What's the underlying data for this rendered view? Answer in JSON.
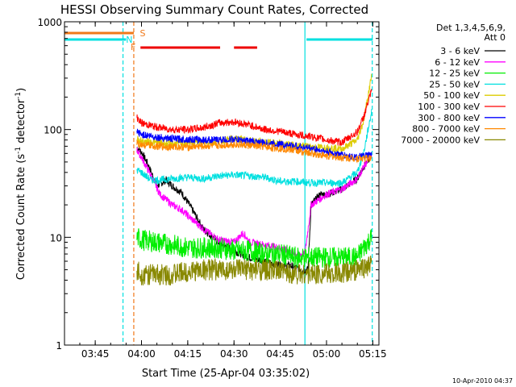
{
  "chart_data": {
    "type": "line",
    "title": "HESSI Observing Summary Count Rates, Corrected",
    "xlabel": "Start Time (25-Apr-04 03:35:02)",
    "ylabel_main": "Corrected Count Rate (s",
    "ylabel_sup1": "-1",
    "ylabel_mid": " detector",
    "ylabel_sup2": "-1",
    "ylabel_end": ")",
    "yscale": "log",
    "ylim": [
      1,
      1000
    ],
    "xlim": [
      "03:35:02",
      "05:17:00"
    ],
    "x_ticks": [
      "03:45",
      "04:00",
      "04:15",
      "04:30",
      "04:45",
      "05:00",
      "05:15"
    ],
    "y_ticks": [
      "1",
      "10",
      "100",
      "1000"
    ],
    "legend_header": [
      "Det 1,3,4,5,6,9,",
      "Att 0"
    ],
    "legend_position": "right",
    "flag_labels": {
      "saa": "S",
      "night": "N",
      "flare": "F"
    },
    "saa_interval": [
      "03:35:02",
      "03:57:30"
    ],
    "night_intervals": [
      [
        "03:35:02",
        "03:55:00"
      ],
      [
        "04:53:30",
        "05:15:00"
      ]
    ],
    "flare_intervals": [
      [
        "03:59:40",
        "04:25:30"
      ],
      [
        "04:30:00",
        "04:37:30"
      ]
    ],
    "vlines": [
      {
        "time": "03:54:00",
        "color": "#00e0e0",
        "style": "dashed"
      },
      {
        "time": "03:57:30",
        "color": "#f07818",
        "style": "dashed"
      },
      {
        "time": "04:53:00",
        "color": "#00e0e0",
        "style": "solid"
      },
      {
        "time": "05:14:50",
        "color": "#00e0e0",
        "style": "dashed"
      }
    ],
    "data_start": "03:58:30",
    "data_end": "05:14:40",
    "series": [
      {
        "name": "3 - 6 keV",
        "color": "#000000",
        "x": [
          "03:58:30",
          "04:00",
          "04:02",
          "04:05",
          "04:08",
          "04:10",
          "04:13",
          "04:16",
          "04:20",
          "04:25",
          "04:30",
          "04:35",
          "04:40",
          "04:45",
          "04:48",
          "04:52",
          "04:54",
          "04:55",
          "04:58",
          "05:00",
          "05:05",
          "05:10",
          "05:12",
          "05:14:40"
        ],
        "values": [
          68,
          62,
          48,
          30,
          34,
          30,
          26,
          19,
          12,
          9,
          7.5,
          6.5,
          6,
          5.5,
          5.5,
          5,
          5,
          20,
          25,
          25,
          28,
          35,
          45,
          58
        ]
      },
      {
        "name": "6 - 12 keV",
        "color": "#ff00ff",
        "x": [
          "03:58:30",
          "04:00",
          "04:03",
          "04:06",
          "04:10",
          "04:13",
          "04:16",
          "04:20",
          "04:25",
          "04:30",
          "04:33",
          "04:35",
          "04:40",
          "04:45",
          "04:50",
          "04:53",
          "04:55",
          "05:00",
          "05:05",
          "05:10",
          "05:12",
          "05:14:40"
        ],
        "values": [
          65,
          55,
          38,
          25,
          20,
          18,
          15,
          12,
          9.5,
          9,
          11,
          9,
          8.5,
          8,
          7,
          7,
          20,
          25,
          28,
          35,
          45,
          58
        ]
      },
      {
        "name": "12 - 25 keV",
        "color": "#00ee00",
        "x": [
          "03:58:30",
          "04:00",
          "04:05",
          "04:10",
          "04:15",
          "04:20",
          "04:25",
          "04:30",
          "04:35",
          "04:40",
          "04:45",
          "04:50",
          "04:55",
          "05:00",
          "05:05",
          "05:10",
          "05:12",
          "05:14:40"
        ],
        "values": [
          10,
          9.5,
          9,
          8.5,
          8,
          8,
          8,
          7.5,
          7.5,
          7,
          7,
          6.5,
          6.5,
          6.5,
          6.5,
          6.5,
          8,
          10
        ]
      },
      {
        "name": "25 - 50 keV",
        "color": "#00e0e0",
        "x": [
          "03:58:30",
          "04:00",
          "04:03",
          "04:06",
          "04:10",
          "04:15",
          "04:20",
          "04:25",
          "04:30",
          "04:35",
          "04:40",
          "04:45",
          "04:50",
          "04:55",
          "05:00",
          "05:05",
          "05:10",
          "05:12",
          "05:14:40"
        ],
        "values": [
          42,
          40,
          34,
          34,
          35,
          36,
          35,
          37,
          38,
          37,
          36,
          33,
          33,
          32,
          32,
          32,
          40,
          60,
          150
        ]
      },
      {
        "name": "50 - 100 keV",
        "color": "#ddcc00",
        "x": [
          "03:58:30",
          "04:00",
          "04:05",
          "04:10",
          "04:15",
          "04:20",
          "04:25",
          "04:30",
          "04:35",
          "04:40",
          "04:45",
          "04:50",
          "04:55",
          "05:00",
          "05:05",
          "05:10",
          "05:12",
          "05:14:40"
        ],
        "values": [
          82,
          78,
          75,
          74,
          75,
          76,
          78,
          82,
          79,
          76,
          74,
          71,
          69,
          68,
          66,
          80,
          120,
          320
        ]
      },
      {
        "name": "100 - 300 keV",
        "color": "#ff0000",
        "x": [
          "03:58:30",
          "04:00",
          "04:05",
          "04:10",
          "04:15",
          "04:20",
          "04:25",
          "04:30",
          "04:35",
          "04:40",
          "04:45",
          "04:50",
          "04:55",
          "05:00",
          "05:05",
          "05:10",
          "05:12",
          "05:14:40"
        ],
        "values": [
          130,
          115,
          105,
          100,
          100,
          104,
          115,
          118,
          110,
          100,
          96,
          90,
          86,
          80,
          76,
          95,
          130,
          230
        ]
      },
      {
        "name": "300 - 800 keV",
        "color": "#0000ff",
        "x": [
          "03:58:30",
          "04:00",
          "04:05",
          "04:10",
          "04:15",
          "04:20",
          "04:25",
          "04:30",
          "04:35",
          "04:40",
          "04:45",
          "04:50",
          "04:55",
          "05:00",
          "05:05",
          "05:10",
          "05:14:40"
        ],
        "values": [
          95,
          90,
          85,
          82,
          81,
          80,
          80,
          81,
          78,
          75,
          73,
          70,
          67,
          62,
          58,
          55,
          58
        ]
      },
      {
        "name": "800 - 7000 keV",
        "color": "#ff8800",
        "x": [
          "03:58:30",
          "04:00",
          "04:05",
          "04:10",
          "04:15",
          "04:20",
          "04:25",
          "04:30",
          "04:35",
          "04:40",
          "04:45",
          "04:50",
          "04:55",
          "05:00",
          "05:05",
          "05:10",
          "05:14:40"
        ],
        "values": [
          75,
          72,
          70,
          69,
          69,
          70,
          71,
          73,
          71,
          69,
          67,
          64,
          60,
          57,
          55,
          54,
          54
        ]
      },
      {
        "name": "7000 - 20000 keV",
        "color": "#888800",
        "x": [
          "03:58:30",
          "04:00",
          "04:05",
          "04:10",
          "04:15",
          "04:20",
          "04:25",
          "04:30",
          "04:35",
          "04:40",
          "04:45",
          "04:50",
          "04:55",
          "05:00",
          "05:05",
          "05:10",
          "05:14:40"
        ],
        "values": [
          5,
          4.5,
          4.5,
          4.5,
          4.8,
          5,
          5,
          5,
          5,
          5,
          4.8,
          4.6,
          4.6,
          4.6,
          4.6,
          5,
          5.5
        ]
      }
    ],
    "timestamp": "10-Apr-2010 04:37"
  }
}
